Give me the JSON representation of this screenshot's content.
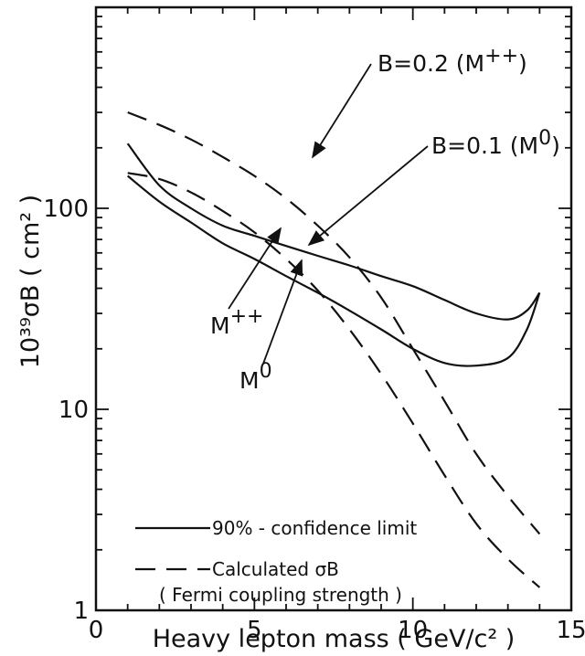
{
  "chart_data": {
    "type": "line",
    "xlabel": "Heavy lepton mass ( GeV/c² )",
    "ylabel": "10³⁹σB ( cm² )",
    "xlim": [
      0,
      15
    ],
    "ylim": [
      1,
      1000
    ],
    "yscale": "log",
    "xticks": [
      "0",
      "5",
      "10",
      "15"
    ],
    "yticks": [
      "1",
      "10",
      "100"
    ],
    "grid": false,
    "legend_position": "bottom-left",
    "legend": {
      "solid": "90% - confidence limit",
      "dashed_line1": "Calculated σB",
      "dashed_line2": "( Fermi coupling strength )"
    },
    "series": [
      {
        "name": "M++",
        "style": "solid",
        "x": [
          1.0,
          2.0,
          3.0,
          4.0,
          5.0,
          6.0,
          7.0,
          8.0,
          9.0,
          10.0,
          11.0,
          12.0,
          13.0,
          13.6,
          14.0
        ],
        "y": [
          210,
          130,
          100,
          82,
          73,
          65,
          58,
          52,
          46,
          41,
          35,
          30,
          28,
          31,
          38
        ]
      },
      {
        "name": "M0",
        "style": "solid",
        "x": [
          1.0,
          2.0,
          3.0,
          4.0,
          5.0,
          6.0,
          7.0,
          8.0,
          9.0,
          10.0,
          11.0,
          12.0,
          13.0,
          13.6,
          14.0
        ],
        "y": [
          145,
          108,
          85,
          67,
          56,
          46,
          38,
          31,
          25,
          20,
          17,
          16.5,
          18,
          25,
          38
        ]
      },
      {
        "name": "B=0.2 (M++)",
        "style": "dashed",
        "x": [
          1.0,
          2.0,
          3.0,
          4.0,
          5.0,
          6.0,
          7.0,
          8.0,
          9.0,
          10.0,
          11.0,
          12.0,
          13.0,
          14.0
        ],
        "y": [
          300,
          260,
          220,
          180,
          145,
          112,
          82,
          57,
          36,
          20,
          11,
          6,
          3.7,
          2.4
        ]
      },
      {
        "name": "B=0.1 (M0)",
        "style": "dashed",
        "x": [
          1.0,
          2.0,
          3.0,
          4.0,
          5.0,
          6.0,
          7.0,
          8.0,
          9.0,
          10.0,
          11.0,
          12.0,
          13.0,
          14.0
        ],
        "y": [
          150,
          140,
          120,
          97,
          76,
          56,
          39,
          25,
          15,
          8.5,
          4.7,
          2.7,
          1.8,
          1.3
        ]
      }
    ],
    "annotations": [
      {
        "text_main": "B=0.2 (M",
        "text_sup": "++",
        "text_end": ")"
      },
      {
        "text_main": "B=0.1 (M",
        "text_sup": "0",
        "text_end": ")"
      },
      {
        "text_main": "M",
        "text_sup": "++"
      },
      {
        "text_main": "M",
        "text_sup": "0"
      }
    ]
  }
}
